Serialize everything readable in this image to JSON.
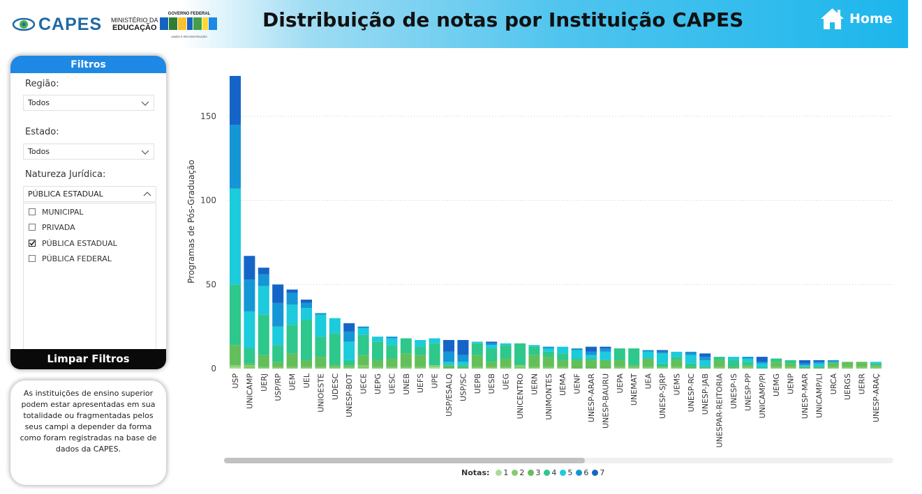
{
  "header": {
    "capes_logo_text": "CAPES",
    "ministry_line1": "MINISTÉRIO DA",
    "ministry_line2": "EDUCAÇÃO",
    "gov_line1": "GOVERNO FEDERAL",
    "gov_line2": "BRASIL",
    "gov_line3": "UNIÃO E RECONSTRUÇÃO",
    "title": "Distribuição de notas por Instituição CAPES",
    "home_label": "Home",
    "home_icon": "house-icon"
  },
  "filters": {
    "heading": "Filtros",
    "regiao_label": "Região:",
    "regiao_value": "Todos",
    "estado_label": "Estado:",
    "estado_value": "Todos",
    "natureza_label": "Natureza Jurídica:",
    "natureza_value": "PÚBLICA ESTADUAL",
    "natureza_options": [
      {
        "label": "MUNICIPAL",
        "checked": false
      },
      {
        "label": "PRIVADA",
        "checked": false
      },
      {
        "label": "PÚBLICA ESTADUAL",
        "checked": true
      },
      {
        "label": "PÚBLICA FEDERAL",
        "checked": false
      }
    ],
    "clear_label": "Limpar Filtros"
  },
  "note": "As instituições de ensino superior podem estar apresentadas em sua totalidade ou fragmentadas pelos seus campi a depender da forma como foram registradas na base de dados da CAPES.",
  "legend_title": "Notas:",
  "colors": {
    "1": "#a8dc9a",
    "2": "#86cc6e",
    "3": "#63bf5a",
    "4": "#2ec78c",
    "5": "#1ccbdc",
    "6": "#1596d6",
    "7": "#1565c8"
  },
  "chart_data": {
    "type": "bar",
    "stacked": true,
    "ylabel": "Programas de Pós-Graduação",
    "xlabel": "",
    "ylim": [
      0,
      175
    ],
    "yticks": [
      0,
      50,
      100,
      150
    ],
    "grid": "horizontal dotted",
    "legend_position": "bottom",
    "categories": [
      "USP",
      "UNICAMP",
      "UERJ",
      "USP/RP",
      "UEM",
      "UEL",
      "UNIOESTE",
      "UDESC",
      "UNESP-BOT",
      "UECE",
      "UEPG",
      "UESC",
      "UNEB",
      "UEFS",
      "UPE",
      "USP/ESALQ",
      "USP/SC",
      "UEPB",
      "UESB",
      "UEG",
      "UNICENTRO",
      "UERN",
      "UNIMONTES",
      "UEMA",
      "UENF",
      "UNESP-ARAR",
      "UNESP-BAURU",
      "UEPA",
      "UNEMAT",
      "UEA",
      "UNESP-SJRP",
      "UEMS",
      "UNESP-RC",
      "UNESP-JAB",
      "UNESPAR-REITORIA",
      "UNESP-IS",
      "UNESP-PP",
      "UNICAMP/PI",
      "UEMG",
      "UENP",
      "UNESP-MAR",
      "UNICAMP/LI",
      "URCA",
      "UERGS",
      "UERR",
      "UNESP-ARAÇ"
    ],
    "series": [
      {
        "name": "1",
        "values": [
          1,
          0,
          0,
          0,
          0,
          0,
          0,
          0,
          0,
          0,
          0,
          0,
          0,
          0,
          1,
          0,
          0,
          0,
          0,
          0,
          0,
          0,
          0,
          0,
          0,
          0,
          0,
          0,
          0,
          0,
          0,
          0,
          0,
          0,
          0,
          0,
          0,
          0,
          0,
          0,
          0,
          0,
          0,
          0,
          0,
          0
        ]
      },
      {
        "name": "2",
        "values": [
          1,
          2,
          1,
          1,
          1,
          1,
          1,
          1,
          1,
          2,
          1,
          1,
          1,
          1,
          1,
          0,
          0,
          1,
          1,
          1,
          2,
          1,
          1,
          1,
          0,
          0,
          0,
          1,
          1,
          1,
          1,
          1,
          0,
          0,
          1,
          0,
          1,
          0,
          1,
          1,
          0,
          0,
          1,
          1,
          1,
          1
        ]
      },
      {
        "name": "3",
        "values": [
          12,
          1,
          7,
          3,
          8,
          4,
          6,
          1,
          1,
          6,
          4,
          5,
          8,
          7,
          0,
          2,
          1,
          7,
          3,
          5,
          0,
          7,
          6,
          4,
          5,
          5,
          5,
          4,
          1,
          5,
          0,
          4,
          1,
          1,
          4,
          1,
          1,
          0,
          3,
          2,
          1,
          1,
          2,
          3,
          3,
          1
        ]
      },
      {
        "name": "4",
        "values": [
          36,
          9,
          24,
          10,
          17,
          24,
          12,
          19,
          3,
          12,
          11,
          8,
          9,
          5,
          13,
          0,
          1,
          7,
          8,
          8,
          13,
          5,
          3,
          4,
          1,
          1,
          0,
          7,
          10,
          0,
          2,
          2,
          2,
          0,
          2,
          4,
          2,
          1,
          2,
          2,
          0,
          0,
          1,
          0,
          0,
          1
        ]
      },
      {
        "name": "5",
        "values": [
          57,
          22,
          17,
          11,
          12,
          7,
          13,
          9,
          11,
          4,
          3,
          4,
          0,
          4,
          3,
          2,
          2,
          1,
          2,
          1,
          0,
          1,
          2,
          4,
          5,
          2,
          5,
          0,
          0,
          4,
          6,
          3,
          5,
          4,
          0,
          2,
          2,
          2,
          0,
          0,
          1,
          2,
          0,
          0,
          0,
          1
        ]
      },
      {
        "name": "6",
        "values": [
          38,
          19,
          7,
          14,
          7,
          3,
          1,
          0,
          6,
          1,
          0,
          1,
          0,
          0,
          0,
          6,
          4,
          0,
          1,
          0,
          0,
          0,
          1,
          0,
          1,
          2,
          2,
          0,
          0,
          1,
          1,
          0,
          2,
          2,
          0,
          0,
          1,
          1,
          0,
          0,
          1,
          1,
          1,
          0,
          0,
          0
        ]
      },
      {
        "name": "7",
        "values": [
          29,
          14,
          4,
          11,
          2,
          2,
          0,
          0,
          5,
          0,
          0,
          0,
          0,
          0,
          0,
          7,
          9,
          0,
          1,
          0,
          0,
          0,
          0,
          0,
          0,
          3,
          1,
          0,
          0,
          0,
          1,
          0,
          0,
          2,
          0,
          0,
          0,
          3,
          0,
          0,
          2,
          1,
          0,
          0,
          0,
          0
        ]
      }
    ]
  }
}
